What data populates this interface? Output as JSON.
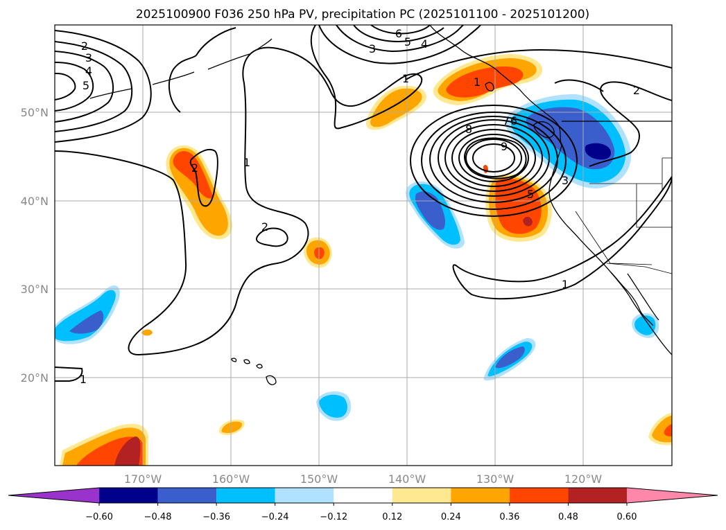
{
  "title": "2025100900 F036 250 hPa PV, precipitation PC (2025101100 - 2025101200)",
  "map": {
    "projection": "equirectangular",
    "lon_range": [
      -180,
      -110
    ],
    "lat_range": [
      10,
      60
    ],
    "lat_ticks": [
      {
        "value": 50,
        "label": "50°N"
      },
      {
        "value": 40,
        "label": "40°N"
      },
      {
        "value": 30,
        "label": "30°N"
      },
      {
        "value": 20,
        "label": "20°N"
      }
    ],
    "lon_ticks": [
      {
        "value": -170,
        "label": "170°W"
      },
      {
        "value": -160,
        "label": "160°W"
      },
      {
        "value": -150,
        "label": "150°W"
      },
      {
        "value": -140,
        "label": "140°W"
      },
      {
        "value": -130,
        "label": "130°W"
      },
      {
        "value": -120,
        "label": "120°W"
      }
    ]
  },
  "pv_contour_labels": [
    "2",
    "3",
    "4",
    "5",
    "6",
    "5",
    "4",
    "3",
    "1",
    "1",
    "1",
    "2",
    "2",
    "8",
    "7",
    "6",
    "9",
    "2",
    "3",
    "5",
    "1",
    "1"
  ],
  "colorbar": {
    "colors": [
      "#9933cc",
      "#00008b",
      "#3a5fcd",
      "#00bfff",
      "#b0e2ff",
      "#ffffff",
      "#ffe88f",
      "#ffa500",
      "#ff4500",
      "#b22222",
      "#ff88aa"
    ],
    "labels": [
      "−0.60",
      "−0.48",
      "−0.36",
      "−0.24",
      "−0.12",
      "0.12",
      "0.24",
      "0.36",
      "0.48",
      "0.60"
    ],
    "values": [
      -0.6,
      -0.48,
      -0.36,
      -0.24,
      -0.12,
      0.12,
      0.24,
      0.36,
      0.48,
      0.6
    ]
  }
}
